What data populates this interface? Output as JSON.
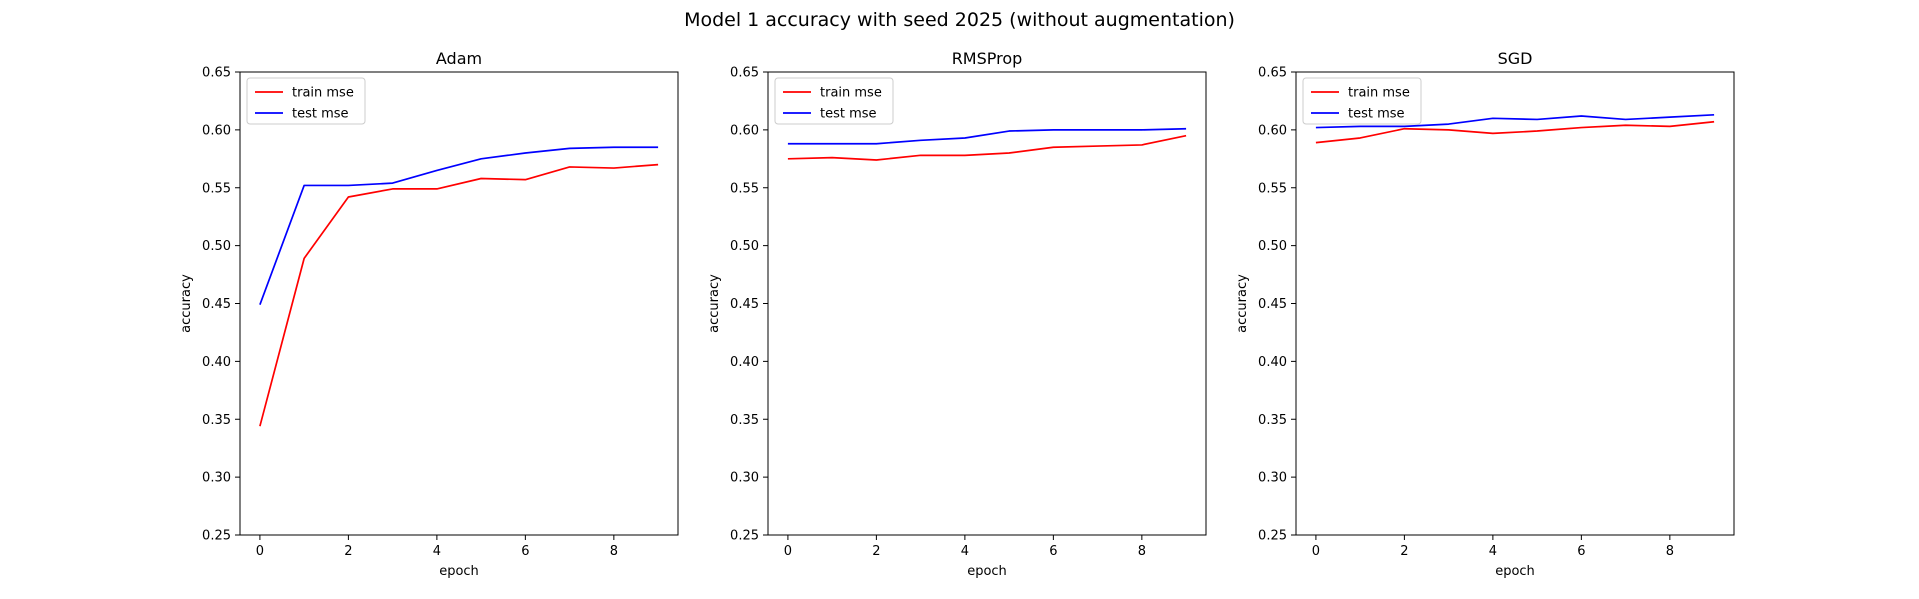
{
  "figure": {
    "title": "Model 1 accuracy with seed 2025 (without augmentation)"
  },
  "chart_data": [
    {
      "type": "line",
      "title": "Adam",
      "xlabel": "epoch",
      "ylabel": "accuracy",
      "x": [
        0,
        1,
        2,
        3,
        4,
        5,
        6,
        7,
        8,
        9
      ],
      "xticks": [
        0,
        2,
        4,
        6,
        8
      ],
      "yticks": [
        0.25,
        0.3,
        0.35,
        0.4,
        0.45,
        0.5,
        0.55,
        0.6,
        0.65
      ],
      "xlim": [
        -0.45,
        9.45
      ],
      "ylim": [
        0.25,
        0.65
      ],
      "legend": "top-left",
      "grid": false,
      "series": [
        {
          "name": "train mse",
          "color": "#ff0000",
          "values": [
            0.344,
            0.489,
            0.542,
            0.549,
            0.549,
            0.558,
            0.557,
            0.568,
            0.567,
            0.57
          ]
        },
        {
          "name": "test mse",
          "color": "#0000ff",
          "values": [
            0.449,
            0.552,
            0.552,
            0.554,
            0.565,
            0.575,
            0.58,
            0.584,
            0.585,
            0.585
          ]
        }
      ]
    },
    {
      "type": "line",
      "title": "RMSProp",
      "xlabel": "epoch",
      "ylabel": "accuracy",
      "x": [
        0,
        1,
        2,
        3,
        4,
        5,
        6,
        7,
        8,
        9
      ],
      "xticks": [
        0,
        2,
        4,
        6,
        8
      ],
      "yticks": [
        0.25,
        0.3,
        0.35,
        0.4,
        0.45,
        0.5,
        0.55,
        0.6,
        0.65
      ],
      "xlim": [
        -0.45,
        9.45
      ],
      "ylim": [
        0.25,
        0.65
      ],
      "legend": "top-left",
      "grid": false,
      "series": [
        {
          "name": "train mse",
          "color": "#ff0000",
          "values": [
            0.575,
            0.576,
            0.574,
            0.578,
            0.578,
            0.58,
            0.585,
            0.586,
            0.587,
            0.595
          ]
        },
        {
          "name": "test mse",
          "color": "#0000ff",
          "values": [
            0.588,
            0.588,
            0.588,
            0.591,
            0.593,
            0.599,
            0.6,
            0.6,
            0.6,
            0.601
          ]
        }
      ]
    },
    {
      "type": "line",
      "title": "SGD",
      "xlabel": "epoch",
      "ylabel": "accuracy",
      "x": [
        0,
        1,
        2,
        3,
        4,
        5,
        6,
        7,
        8,
        9
      ],
      "xticks": [
        0,
        2,
        4,
        6,
        8
      ],
      "yticks": [
        0.25,
        0.3,
        0.35,
        0.4,
        0.45,
        0.5,
        0.55,
        0.6,
        0.65
      ],
      "xlim": [
        -0.45,
        9.45
      ],
      "ylim": [
        0.25,
        0.65
      ],
      "legend": "top-left",
      "grid": false,
      "series": [
        {
          "name": "train mse",
          "color": "#ff0000",
          "values": [
            0.589,
            0.593,
            0.601,
            0.6,
            0.597,
            0.599,
            0.602,
            0.604,
            0.603,
            0.607
          ]
        },
        {
          "name": "test mse",
          "color": "#0000ff",
          "values": [
            0.602,
            0.603,
            0.603,
            0.605,
            0.61,
            0.609,
            0.612,
            0.609,
            0.611,
            0.613
          ]
        }
      ]
    }
  ]
}
